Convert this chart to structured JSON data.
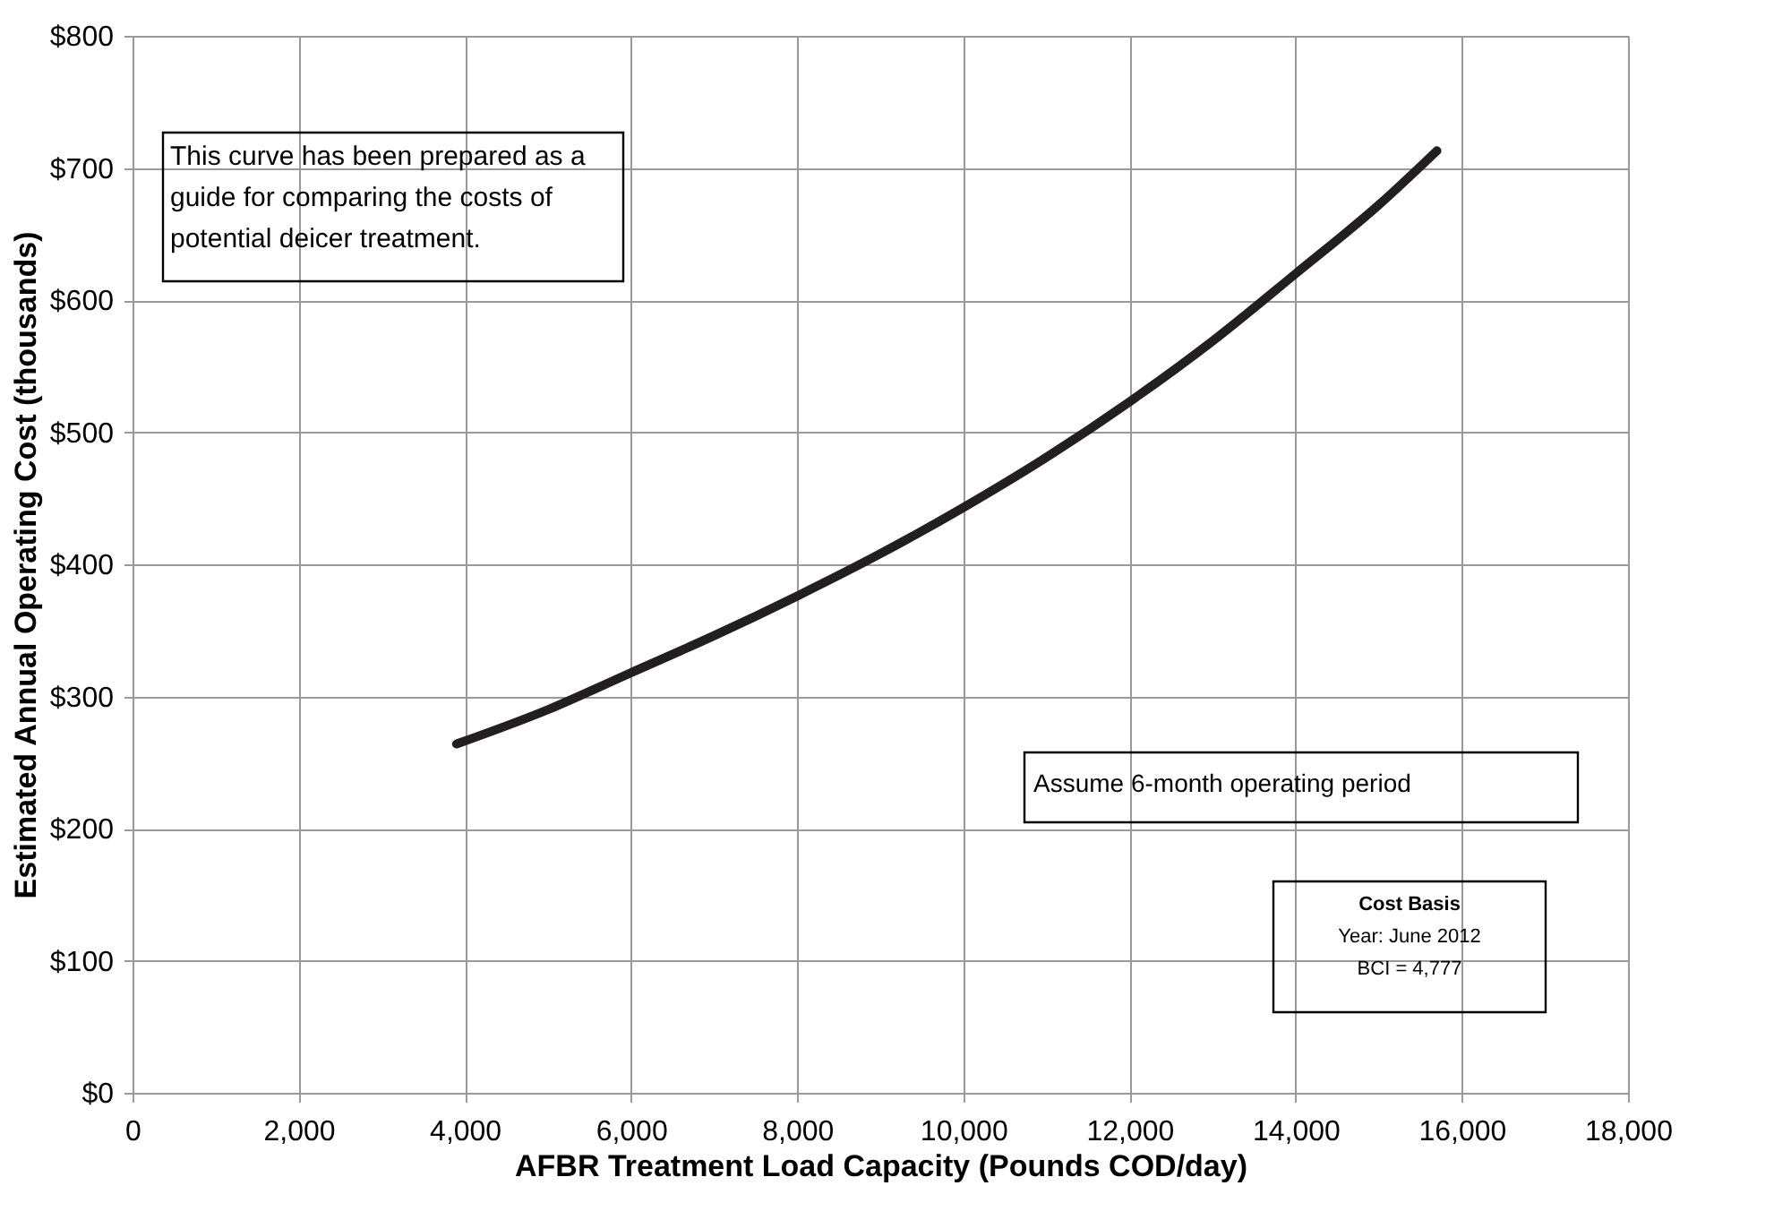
{
  "chart_data": {
    "type": "line",
    "xlabel": "AFBR Treatment Load Capacity (Pounds COD/day)",
    "ylabel": "Estimated Annual Operating Cost (thousands)",
    "series": [
      {
        "color": "#231f20",
        "x": [
          3900,
          5000,
          6000,
          7000,
          8000,
          9000,
          10000,
          11000,
          12000,
          13000,
          14000,
          15000,
          15700
        ],
        "values": [
          264,
          290,
          318,
          346,
          376,
          408,
          443,
          481,
          523,
          569,
          620,
          672,
          713
        ]
      }
    ],
    "xlim": [
      0,
      18000
    ],
    "ylim": [
      0,
      800
    ],
    "xticks": [
      0,
      {
        "value": 2000,
        "label": "2,000"
      },
      {
        "value": 4000,
        "label": "4,000"
      },
      {
        "value": 6000,
        "label": "6,000"
      },
      {
        "value": 8000,
        "label": "8,000"
      },
      {
        "value": 10000,
        "label": "10,000"
      },
      {
        "value": 12000,
        "label": "12,000"
      },
      {
        "value": 14000,
        "label": "14,000"
      },
      {
        "value": 16000,
        "label": "16,000"
      },
      {
        "value": 18000,
        "label": "18,000"
      }
    ],
    "yticks": [
      {
        "value": 0,
        "label": "$0"
      },
      {
        "value": 100,
        "label": "$100"
      },
      {
        "value": 200,
        "label": "$200"
      },
      {
        "value": 300,
        "label": "$300"
      },
      {
        "value": 400,
        "label": "$400"
      },
      {
        "value": 500,
        "label": "$500"
      },
      {
        "value": 600,
        "label": "$600"
      },
      {
        "value": 700,
        "label": "$700"
      },
      {
        "value": 800,
        "label": "$800"
      }
    ],
    "grid": true,
    "marker": "none",
    "line_style": "solid",
    "annotations": [
      "This curve has been prepared as a\nguide for comparing the costs of\npotential deicer treatment.",
      "Assume 6-month operating period",
      "Cost Basis",
      "Year: June 2012",
      "BCI = 4,777"
    ]
  }
}
